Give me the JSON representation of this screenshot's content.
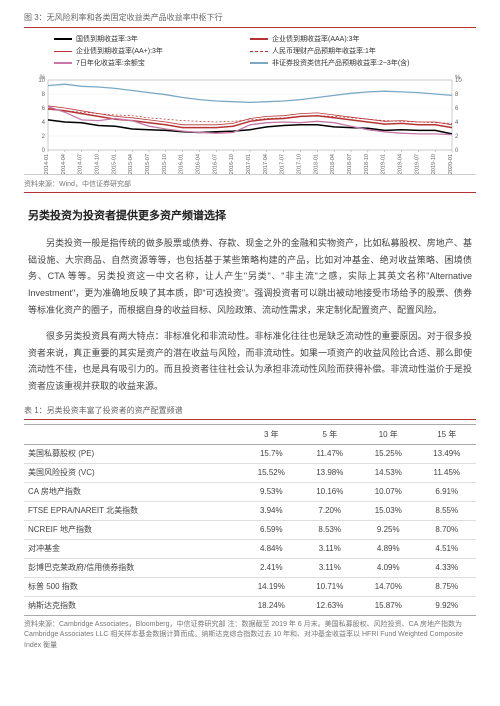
{
  "chart": {
    "title": "图 3：无风险利率和各类固定收益类产品收益率中枢下行",
    "legend": [
      {
        "label": "国债到期收益率:3年",
        "color": "#000000",
        "width": 2
      },
      {
        "label": "企业债到期收益率(AAA):3年",
        "color": "#b73333",
        "width": 2
      },
      {
        "label": "企业债到期收益率(AA+):3年",
        "color": "#b73333",
        "width": 1
      },
      {
        "label": "人民币理财产品预期年收益率:1年",
        "color": "#b73333",
        "width": 0.8,
        "dash": "3,2"
      },
      {
        "label": "7日年化收益率:余额宝",
        "color": "#c778a8",
        "width": 1.5
      },
      {
        "label": "非证券投资类信托产品预期收益率:2~3年(含)",
        "color": "#7ba8c4",
        "width": 1.5
      }
    ],
    "y_label_left": "%",
    "y_label_right": "%",
    "y_ticks_left": [
      0,
      2,
      4,
      6,
      8,
      10
    ],
    "y_ticks_right": [
      0,
      2,
      4,
      6,
      8,
      10
    ],
    "x_ticks": [
      "2014-01",
      "2014-04",
      "2014-07",
      "2014-10",
      "2015-01",
      "2015-04",
      "2015-07",
      "2015-10",
      "2016-01",
      "2016-04",
      "2016-07",
      "2016-10",
      "2017-01",
      "2017-04",
      "2017-07",
      "2017-10",
      "2018-01",
      "2018-04",
      "2018-07",
      "2018-10",
      "2019-01",
      "2019-04",
      "2019-07",
      "2019-10",
      "2020-01"
    ],
    "series": [
      {
        "name": "gov",
        "color": "#000000",
        "width": 1.5,
        "values": [
          4.3,
          4.0,
          3.9,
          3.5,
          3.4,
          3.0,
          2.9,
          2.8,
          2.6,
          2.5,
          2.6,
          2.7,
          2.9,
          3.3,
          3.5,
          3.6,
          3.6,
          3.3,
          3.2,
          3.1,
          2.8,
          2.9,
          2.8,
          2.8,
          2.3
        ]
      },
      {
        "name": "aaa",
        "color": "#b73333",
        "width": 1.5,
        "values": [
          5.9,
          5.6,
          5.2,
          4.8,
          4.4,
          4.2,
          3.9,
          3.6,
          3.2,
          3.2,
          3.2,
          3.4,
          4.1,
          4.4,
          4.5,
          4.8,
          4.9,
          4.6,
          4.3,
          4.0,
          3.7,
          3.8,
          3.6,
          3.6,
          3.2
        ]
      },
      {
        "name": "aaplus",
        "color": "#b73333",
        "width": 0.8,
        "values": [
          6.3,
          6.0,
          5.6,
          5.2,
          4.8,
          4.6,
          4.3,
          4.0,
          3.6,
          3.6,
          3.6,
          3.8,
          4.5,
          4.8,
          4.9,
          5.2,
          5.3,
          5.0,
          4.7,
          4.4,
          4.1,
          4.2,
          4.0,
          4.0,
          3.6
        ]
      },
      {
        "name": "wmp",
        "color": "#b73333",
        "width": 0.7,
        "dash": "2,2",
        "values": [
          5.8,
          5.6,
          5.4,
          5.2,
          5.0,
          4.9,
          4.6,
          4.4,
          4.2,
          4.1,
          4.0,
          4.1,
          4.3,
          4.5,
          4.6,
          4.8,
          4.9,
          4.8,
          4.6,
          4.4,
          4.2,
          4.1,
          4.0,
          3.9,
          3.8
        ]
      },
      {
        "name": "yuebao",
        "color": "#c778a8",
        "width": 1.3,
        "values": [
          6.2,
          5.4,
          4.3,
          4.2,
          4.5,
          4.2,
          3.4,
          3.0,
          2.7,
          2.5,
          2.4,
          2.5,
          3.6,
          3.9,
          4.0,
          3.9,
          4.1,
          3.9,
          3.4,
          2.9,
          2.6,
          2.4,
          2.3,
          2.3,
          2.2
        ]
      },
      {
        "name": "trust",
        "color": "#7ba8c4",
        "width": 1.3,
        "values": [
          9.2,
          9.4,
          9.1,
          9.0,
          8.8,
          8.5,
          8.2,
          7.9,
          7.5,
          7.2,
          7.0,
          6.9,
          6.8,
          6.9,
          7.0,
          7.2,
          7.5,
          7.8,
          8.1,
          8.3,
          8.4,
          8.3,
          8.2,
          8.0,
          7.8
        ]
      }
    ],
    "source": "资料来源：Wind，中信证券研究部"
  },
  "body": {
    "heading": "另类投资为投资者提供更多资产频谱选择",
    "p1": "另类投资一般是指传统的做多股票或债券、存款、现金之外的金融和实物资产，比如私募股权、房地产、基础设施、大宗商品、自然资源等等，也包括基于某些策略构建的产品，比如对冲基金、绝对收益策略、困境债务、CTA 等等。另类投资这一中文名称，让人产生\"另类\"、\"非主流\"之感，实际上其英文名称\"Alternative Investment\"，更为准确地反映了其本质，即\"可选投资\"。强调投资者可以跳出被动地接受市场给予的股票、债券等标准化资产的圈子，而根据自身的收益目标、风险政策、流动性需求，来定制化配置资产、配置风险。",
    "p2": "很多另类投资具有两大特点：非标准化和非流动性。非标准化往往也是缺乏流动性的重要原因。对于很多投资者来说，真正重要的其实是资产的潜在收益与风险，而非流动性。如果一项资产的收益风险比合适、那么即使流动性不佳，也是具有吸引力的。而且投资者往往社会认为承担非流动性风险而获得补偿。非流动性溢价于是投资者应该重视并获取的收益来源。"
  },
  "table": {
    "title": "表 1：另类投资丰富了投资者的资产配置频谱",
    "columns": [
      "",
      "3 年",
      "5 年",
      "10 年",
      "15 年"
    ],
    "rows": [
      [
        "美国私募股权 (PE)",
        "15.7%",
        "11.47%",
        "15.25%",
        "13.49%"
      ],
      [
        "美国风险投资 (VC)",
        "15.52%",
        "13.98%",
        "14.53%",
        "11.45%"
      ],
      [
        "CA 房地产指数",
        "9.53%",
        "10.16%",
        "10.07%",
        "6.91%"
      ],
      [
        "FTSE EPRA/NAREIT 北美指数",
        "3.94%",
        "7.20%",
        "15.03%",
        "8.55%"
      ],
      [
        "NCREIF 地产指数",
        "6.59%",
        "8.53%",
        "9.25%",
        "8.70%"
      ],
      [
        "对冲基金",
        "4.84%",
        "3.11%",
        "4.89%",
        "4.51%"
      ],
      [
        "彭博巴克莱政府/信用债券指数",
        "2.41%",
        "3.11%",
        "4.09%",
        "4.33%"
      ],
      [
        "标普 500 指数",
        "14.19%",
        "10.71%",
        "14.70%",
        "8.75%"
      ],
      [
        "纳斯达克指数",
        "18.24%",
        "12.63%",
        "15.87%",
        "9.92%"
      ]
    ],
    "footnote": "资料来源：Cambridge Associates，Bloomberg，中信证券研究部  注：数据截至 2019 年 6 月末。美国私募股权、风险投资、CA 房地产指数为 Cambridge Associates LLC 相关样本基金数据计算而成。纳斯达克综合指数过去 10 年和、对冲基金收益率以 HFRI Fund Weighted Composite Index 衡量"
  }
}
